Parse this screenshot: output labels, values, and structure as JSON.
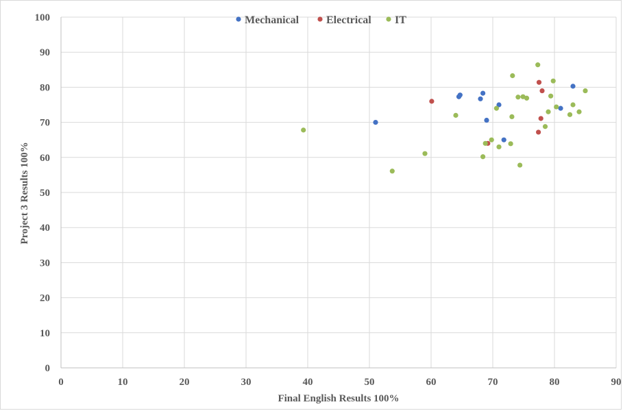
{
  "chart_data": {
    "type": "scatter",
    "title": "",
    "xlabel": "Final English Results 100%",
    "ylabel": "Project 3 Results 100%",
    "xlim": [
      0,
      90
    ],
    "ylim": [
      0,
      100
    ],
    "x_ticks": [
      0,
      10,
      20,
      30,
      40,
      50,
      60,
      70,
      80,
      90
    ],
    "y_ticks": [
      0,
      10,
      20,
      30,
      40,
      50,
      60,
      70,
      80,
      90,
      100
    ],
    "grid": true,
    "legend_position": "top",
    "series": [
      {
        "name": "Mechanical",
        "color": "#4472c4",
        "points": [
          [
            51,
            70
          ],
          [
            64.5,
            77.3
          ],
          [
            64.7,
            77.8
          ],
          [
            68,
            76.7
          ],
          [
            68.4,
            78.3
          ],
          [
            69,
            70.6
          ],
          [
            71,
            75
          ],
          [
            71.8,
            65
          ],
          [
            81,
            74
          ],
          [
            83,
            80.3
          ]
        ]
      },
      {
        "name": "Electrical",
        "color": "#c0504d",
        "points": [
          [
            60.1,
            76
          ],
          [
            69.2,
            64
          ],
          [
            77.5,
            81.4
          ],
          [
            77.8,
            71.1
          ],
          [
            78,
            79
          ],
          [
            77.4,
            67.2
          ]
        ]
      },
      {
        "name": "IT",
        "color": "#9bbb59",
        "points": [
          [
            39.3,
            67.8
          ],
          [
            53.7,
            56.1
          ],
          [
            59,
            61.1
          ],
          [
            64,
            72
          ],
          [
            68.4,
            60.2
          ],
          [
            68.8,
            64
          ],
          [
            69.8,
            65
          ],
          [
            70.6,
            74
          ],
          [
            71,
            63
          ],
          [
            72.9,
            63.9
          ],
          [
            73.1,
            71.6
          ],
          [
            73.2,
            83.3
          ],
          [
            74.1,
            77.2
          ],
          [
            74.4,
            57.8
          ],
          [
            74.9,
            77.3
          ],
          [
            75.5,
            76.9
          ],
          [
            77.3,
            86.4
          ],
          [
            78.5,
            68.8
          ],
          [
            79,
            73
          ],
          [
            79.4,
            77.5
          ],
          [
            79.8,
            81.8
          ],
          [
            80.3,
            74.4
          ],
          [
            82.5,
            72.2
          ],
          [
            83,
            75
          ],
          [
            84,
            73
          ],
          [
            85,
            79
          ]
        ]
      }
    ]
  }
}
